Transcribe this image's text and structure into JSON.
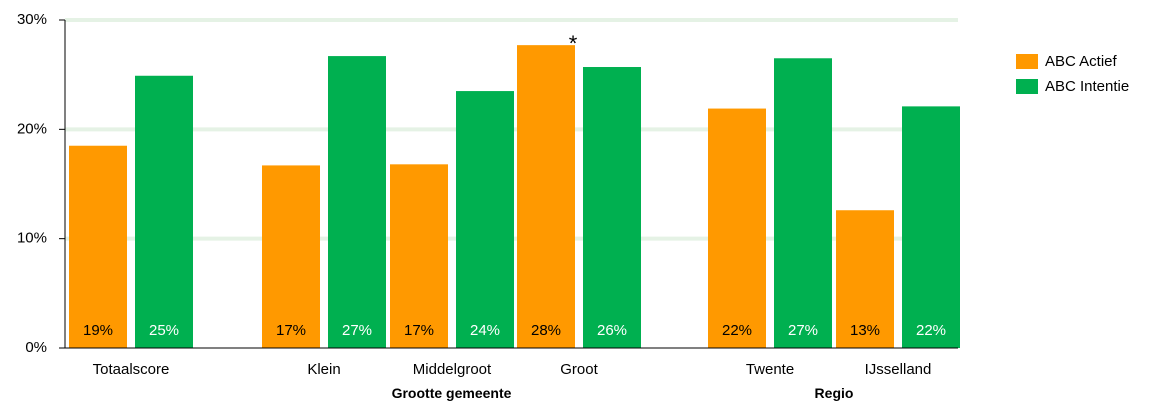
{
  "chart_data": {
    "type": "bar",
    "categories": [
      "Totaalscore",
      "Klein",
      "Middelgroot",
      "Groot",
      "Twente",
      "IJsselland"
    ],
    "groups": [
      {
        "label": "",
        "categories": [
          "Totaalscore"
        ]
      },
      {
        "label": "Grootte gemeente",
        "categories": [
          "Klein",
          "Middelgroot",
          "Groot"
        ]
      },
      {
        "label": "Regio",
        "categories": [
          "Twente",
          "IJsselland"
        ]
      }
    ],
    "series": [
      {
        "name": "ABC Actief",
        "color": "#FF9900",
        "values": [
          18.5,
          16.7,
          16.8,
          27.7,
          21.9,
          12.6
        ],
        "labels": [
          "19%",
          "17%",
          "17%",
          "28%",
          "22%",
          "13%"
        ]
      },
      {
        "name": "ABC Intentie",
        "color": "#00B050",
        "values": [
          24.9,
          26.7,
          23.5,
          25.7,
          26.5,
          22.1
        ],
        "labels": [
          "25%",
          "27%",
          "24%",
          "26%",
          "27%",
          "22%"
        ]
      }
    ],
    "ylim": [
      0,
      30
    ],
    "yticks": [
      0,
      10,
      20,
      30
    ],
    "ytick_labels": [
      "0%",
      "10%",
      "20%",
      "30%"
    ],
    "grid": true,
    "grid_color": "#E5F2E5",
    "legend_position": "right",
    "annotations": [
      {
        "text": "*",
        "category": "Groot",
        "series": "ABC Actief"
      }
    ]
  }
}
